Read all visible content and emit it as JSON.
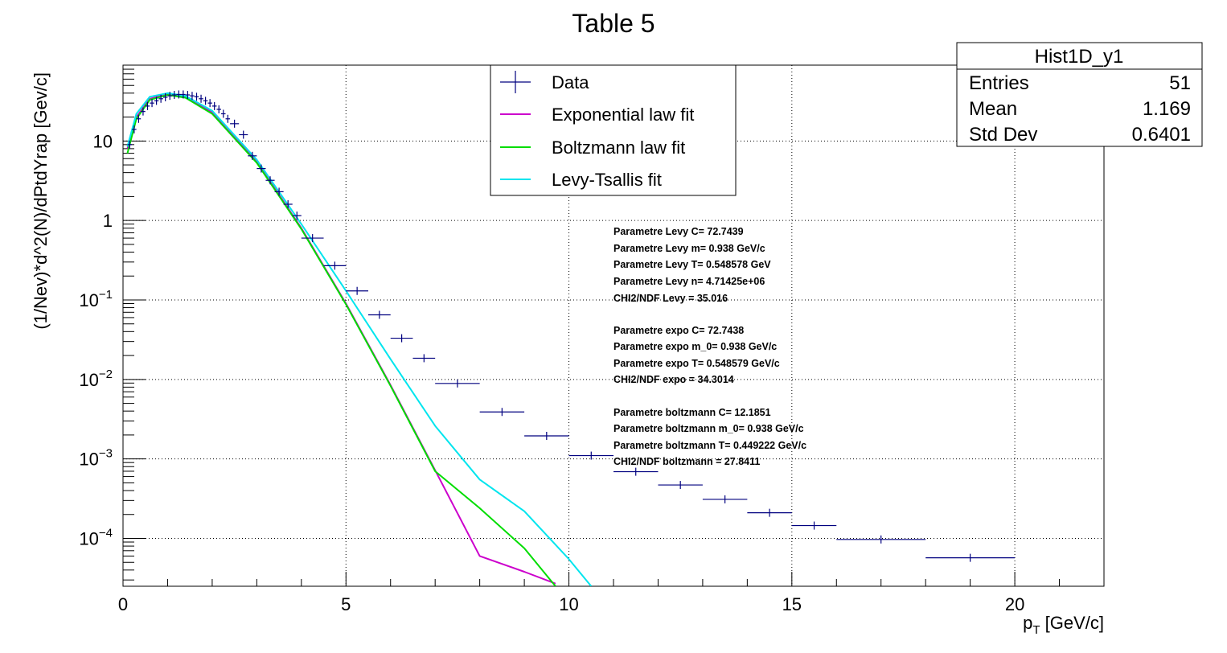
{
  "chart_data": {
    "type": "scatter",
    "title": "Table 5",
    "xlabel_main": "p",
    "xlabel_sub": "T",
    "xlabel_unit": " [GeV/c]",
    "ylabel": "(1/Nev)*d^2(N)/dPtdYrap  [Gev/c]",
    "xlim": [
      0,
      22
    ],
    "ylim": [
      2.5e-05,
      90
    ],
    "yscale": "log",
    "grid": true,
    "x_ticks": [
      "0",
      "5",
      "10",
      "15",
      "20"
    ],
    "y_ticks": [
      {
        "base": "10",
        "exp": "",
        "value": 10
      },
      {
        "base": "1",
        "exp": "",
        "value": 1
      },
      {
        "base": "10",
        "exp": "−1",
        "value": 0.1
      },
      {
        "base": "10",
        "exp": "−2",
        "value": 0.01
      },
      {
        "base": "10",
        "exp": "−3",
        "value": 0.001
      },
      {
        "base": "10",
        "exp": "−4",
        "value": 0.0001
      }
    ],
    "legend": {
      "position": "top-center",
      "entries": [
        {
          "label": "Data",
          "color": "#00007f",
          "kind": "marker"
        },
        {
          "label": "Exponential law fit",
          "color": "#cc00cc",
          "kind": "line"
        },
        {
          "label": "Boltzmann law fit",
          "color": "#00dd00",
          "kind": "line"
        },
        {
          "label": "Levy-Tsallis fit",
          "color": "#00e5ee",
          "kind": "line"
        }
      ]
    },
    "stats": {
      "title": "Hist1D_y1",
      "rows": [
        {
          "label": "Entries",
          "value": "51"
        },
        {
          "label": "Mean",
          "value": "1.169"
        },
        {
          "label": "Std Dev",
          "value": "0.6401"
        }
      ]
    },
    "annotations": [
      "Parametre Levy C= 72.7439",
      "Parametre Levy m= 0.938 GeV/c",
      "Parametre Levy T= 0.548578 GeV",
      "Parametre Levy n= 4.71425e+06",
      "CHI2/NDF Levy = 35.016",
      "Parametre expo C= 72.7438",
      "Parametre expo m_0= 0.938 GeV/c",
      "Parametre expo T= 0.548579 GeV/c",
      "CHI2/NDF expo = 34.3014",
      "Parametre boltzmann C= 12.1851",
      "Parametre boltzmann m_0= 0.938 GeV/c",
      "Parametre boltzmann T= 0.449222 GeV/c",
      "CHI2/NDF boltzmann = 27.8411"
    ],
    "series": [
      {
        "name": "Data",
        "color": "#00007f",
        "points": [
          {
            "x": 0.15,
            "xerr": 0.05,
            "y": 9.0
          },
          {
            "x": 0.25,
            "xerr": 0.05,
            "y": 14.0
          },
          {
            "x": 0.35,
            "xerr": 0.05,
            "y": 19.0
          },
          {
            "x": 0.45,
            "xerr": 0.05,
            "y": 23.5
          },
          {
            "x": 0.55,
            "xerr": 0.05,
            "y": 27.5
          },
          {
            "x": 0.65,
            "xerr": 0.05,
            "y": 30.0
          },
          {
            "x": 0.75,
            "xerr": 0.05,
            "y": 32.0
          },
          {
            "x": 0.85,
            "xerr": 0.05,
            "y": 34.0
          },
          {
            "x": 0.95,
            "xerr": 0.05,
            "y": 35.5
          },
          {
            "x": 1.05,
            "xerr": 0.05,
            "y": 37.0
          },
          {
            "x": 1.15,
            "xerr": 0.05,
            "y": 38.0
          },
          {
            "x": 1.25,
            "xerr": 0.05,
            "y": 38.5
          },
          {
            "x": 1.35,
            "xerr": 0.05,
            "y": 38.5
          },
          {
            "x": 1.45,
            "xerr": 0.05,
            "y": 38.0
          },
          {
            "x": 1.55,
            "xerr": 0.05,
            "y": 37.0
          },
          {
            "x": 1.65,
            "xerr": 0.05,
            "y": 36.0
          },
          {
            "x": 1.75,
            "xerr": 0.05,
            "y": 34.0
          },
          {
            "x": 1.85,
            "xerr": 0.05,
            "y": 32.0
          },
          {
            "x": 1.95,
            "xerr": 0.05,
            "y": 30.0
          },
          {
            "x": 2.05,
            "xerr": 0.05,
            "y": 27.5
          },
          {
            "x": 2.15,
            "xerr": 0.05,
            "y": 25.0
          },
          {
            "x": 2.25,
            "xerr": 0.05,
            "y": 22.0
          },
          {
            "x": 2.35,
            "xerr": 0.05,
            "y": 19.0
          },
          {
            "x": 2.5,
            "xerr": 0.1,
            "y": 16.5
          },
          {
            "x": 2.7,
            "xerr": 0.1,
            "y": 12.0
          },
          {
            "x": 2.9,
            "xerr": 0.1,
            "y": 6.5
          },
          {
            "x": 3.1,
            "xerr": 0.1,
            "y": 4.5
          },
          {
            "x": 3.3,
            "xerr": 0.1,
            "y": 3.2
          },
          {
            "x": 3.5,
            "xerr": 0.1,
            "y": 2.3
          },
          {
            "x": 3.7,
            "xerr": 0.1,
            "y": 1.6
          },
          {
            "x": 3.9,
            "xerr": 0.1,
            "y": 1.15
          },
          {
            "x": 4.25,
            "xerr": 0.25,
            "y": 0.6
          },
          {
            "x": 4.75,
            "xerr": 0.25,
            "y": 0.27
          },
          {
            "x": 5.25,
            "xerr": 0.25,
            "y": 0.13
          },
          {
            "x": 5.75,
            "xerr": 0.25,
            "y": 0.065
          },
          {
            "x": 6.25,
            "xerr": 0.25,
            "y": 0.033
          },
          {
            "x": 6.75,
            "xerr": 0.25,
            "y": 0.0185
          },
          {
            "x": 7.5,
            "xerr": 0.5,
            "y": 0.0089
          },
          {
            "x": 8.5,
            "xerr": 0.5,
            "y": 0.0039
          },
          {
            "x": 9.5,
            "xerr": 0.5,
            "y": 0.00195
          },
          {
            "x": 10.5,
            "xerr": 0.5,
            "y": 0.0011
          },
          {
            "x": 11.5,
            "xerr": 0.5,
            "y": 0.00069
          },
          {
            "x": 12.5,
            "xerr": 0.5,
            "y": 0.00047
          },
          {
            "x": 13.5,
            "xerr": 0.5,
            "y": 0.00031
          },
          {
            "x": 14.5,
            "xerr": 0.5,
            "y": 0.00021
          },
          {
            "x": 15.5,
            "xerr": 0.5,
            "y": 0.000145
          },
          {
            "x": 17.0,
            "xerr": 1.0,
            "y": 9.7e-05
          },
          {
            "x": 19.0,
            "xerr": 1.0,
            "y": 5.7e-05
          }
        ]
      },
      {
        "name": "Exponential law fit",
        "color": "#cc00cc",
        "x": [
          0.1,
          0.3,
          0.6,
          1.0,
          1.4,
          2.0,
          3.0,
          4.0,
          5.0,
          6.0,
          7.0,
          8.0,
          9.0,
          9.7
        ],
        "y": [
          8.0,
          20.0,
          34.0,
          39.0,
          36.0,
          23.0,
          5.5,
          0.8,
          0.09,
          0.0085,
          0.00072,
          6e-05,
          3.8e-05,
          2.7e-05
        ]
      },
      {
        "name": "Boltzmann law fit",
        "color": "#00dd00",
        "x": [
          0.1,
          0.3,
          0.6,
          1.0,
          1.4,
          2.0,
          3.0,
          4.0,
          5.0,
          6.0,
          7.0,
          8.0,
          9.0,
          9.7
        ],
        "y": [
          7.0,
          19.0,
          33.0,
          38.0,
          35.0,
          22.0,
          5.3,
          0.78,
          0.088,
          0.0083,
          0.0007,
          0.00024,
          7.5e-05,
          2.5e-05
        ]
      },
      {
        "name": "Levy-Tsallis fit",
        "color": "#00e5ee",
        "x": [
          0.1,
          0.3,
          0.6,
          1.0,
          1.4,
          2.0,
          3.0,
          4.0,
          5.0,
          6.0,
          7.0,
          8.0,
          9.0,
          10.0,
          10.5
        ],
        "y": [
          8.5,
          22.0,
          36.0,
          40.0,
          37.0,
          24.0,
          5.8,
          0.9,
          0.13,
          0.018,
          0.0026,
          0.00055,
          0.00022,
          5.5e-05,
          2.5e-05
        ]
      }
    ]
  }
}
